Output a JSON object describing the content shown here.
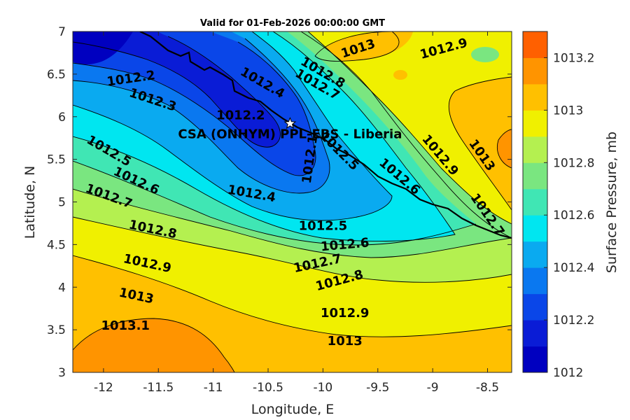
{
  "chart_data": {
    "type": "contour",
    "title": "Valid for 01-Feb-2026 00:00:00 GMT",
    "xlabel": "Longitude, E",
    "ylabel": "Latitude, N",
    "xlim": [
      -12.28,
      -8.28
    ],
    "ylim": [
      3,
      7
    ],
    "xticks": [
      -12,
      -11.5,
      -11,
      -10.5,
      -10,
      -9.5,
      -9,
      -8.5
    ],
    "xtick_labels": [
      "-12",
      "-11.5",
      "-11",
      "-10.5",
      "-10",
      "-9.5",
      "-9",
      "-8.5"
    ],
    "yticks": [
      3,
      3.5,
      4,
      4.5,
      5,
      5.5,
      6,
      6.5,
      7
    ],
    "ytick_labels": [
      "3",
      "3.5",
      "4",
      "4.5",
      "5",
      "5.5",
      "6",
      "6.5",
      "7"
    ],
    "grid": false,
    "colorbar": {
      "label": "Surface Pressure, mb",
      "min": 1012,
      "max": 1013.3,
      "levels": [
        1012.0,
        1012.1,
        1012.2,
        1012.3,
        1012.4,
        1012.5,
        1012.6,
        1012.7,
        1012.8,
        1012.9,
        1013.0,
        1013.1,
        1013.2,
        1013.3
      ],
      "colors": [
        "#0000c0",
        "#0a1cd6",
        "#0a46e8",
        "#0a78f0",
        "#0aaaf0",
        "#00e6f0",
        "#40e6b4",
        "#7ae680",
        "#b4f050",
        "#f0f000",
        "#ffc000",
        "#ff9400",
        "#ff6000",
        "#ff1e00"
      ],
      "ticks": [
        1012,
        1012.2,
        1012.4,
        1012.6,
        1012.8,
        1013,
        1013.2
      ],
      "tick_labels": [
        "1012",
        "1012.2",
        "1012.4",
        "1012.6",
        "1012.8",
        "1013",
        "1013.2"
      ]
    },
    "contour_labels": [
      {
        "text": "1012.2",
        "lon": -11.75,
        "lat": 6.45,
        "angle": -8
      },
      {
        "text": "1012.3",
        "lon": -11.55,
        "lat": 6.2,
        "angle": 18
      },
      {
        "text": "1012.2",
        "lon": -10.75,
        "lat": 6.02,
        "angle": 0
      },
      {
        "text": "1012.4",
        "lon": -10.55,
        "lat": 6.4,
        "angle": 30
      },
      {
        "text": "1012.8",
        "lon": -10.0,
        "lat": 6.52,
        "angle": 30
      },
      {
        "text": "1012.7",
        "lon": -10.05,
        "lat": 6.38,
        "angle": 30
      },
      {
        "text": "1013",
        "lon": -9.68,
        "lat": 6.8,
        "angle": -18
      },
      {
        "text": "1012.9",
        "lon": -8.9,
        "lat": 6.8,
        "angle": -15
      },
      {
        "text": "1012.1",
        "lon": -10.12,
        "lat": 5.5,
        "angle": -82
      },
      {
        "text": "1012.5",
        "lon": -9.85,
        "lat": 5.6,
        "angle": 45
      },
      {
        "text": "1012.6",
        "lon": -9.3,
        "lat": 5.3,
        "angle": 40
      },
      {
        "text": "1012.9",
        "lon": -8.93,
        "lat": 5.55,
        "angle": 50
      },
      {
        "text": "1013",
        "lon": -8.55,
        "lat": 5.55,
        "angle": 55
      },
      {
        "text": "1012.7",
        "lon": -8.5,
        "lat": 4.85,
        "angle": 55
      },
      {
        "text": "1012.5",
        "lon": -11.95,
        "lat": 5.6,
        "angle": 30
      },
      {
        "text": "1012.6",
        "lon": -11.7,
        "lat": 5.25,
        "angle": 25
      },
      {
        "text": "1012.7",
        "lon": -11.95,
        "lat": 5.07,
        "angle": 20
      },
      {
        "text": "1012.4",
        "lon": -10.65,
        "lat": 5.1,
        "angle": 10
      },
      {
        "text": "1012.5",
        "lon": -10.0,
        "lat": 4.72,
        "angle": 0
      },
      {
        "text": "1012.8",
        "lon": -11.55,
        "lat": 4.68,
        "angle": 12
      },
      {
        "text": "1012.6",
        "lon": -9.8,
        "lat": 4.5,
        "angle": -5
      },
      {
        "text": "1012.7",
        "lon": -10.05,
        "lat": 4.28,
        "angle": -12
      },
      {
        "text": "1012.8",
        "lon": -9.85,
        "lat": 4.08,
        "angle": -15
      },
      {
        "text": "1012.9",
        "lon": -11.6,
        "lat": 4.28,
        "angle": 12
      },
      {
        "text": "1013",
        "lon": -11.7,
        "lat": 3.9,
        "angle": 12
      },
      {
        "text": "1012.9",
        "lon": -9.8,
        "lat": 3.7,
        "angle": 0
      },
      {
        "text": "1013.1",
        "lon": -11.8,
        "lat": 3.55,
        "angle": 0
      },
      {
        "text": "1013",
        "lon": -9.8,
        "lat": 3.37,
        "angle": 0
      }
    ],
    "station": {
      "label": "CSA (ONHYM) PPL-EBS  - Liberia",
      "lon": -10.3,
      "lat": 5.92
    }
  }
}
